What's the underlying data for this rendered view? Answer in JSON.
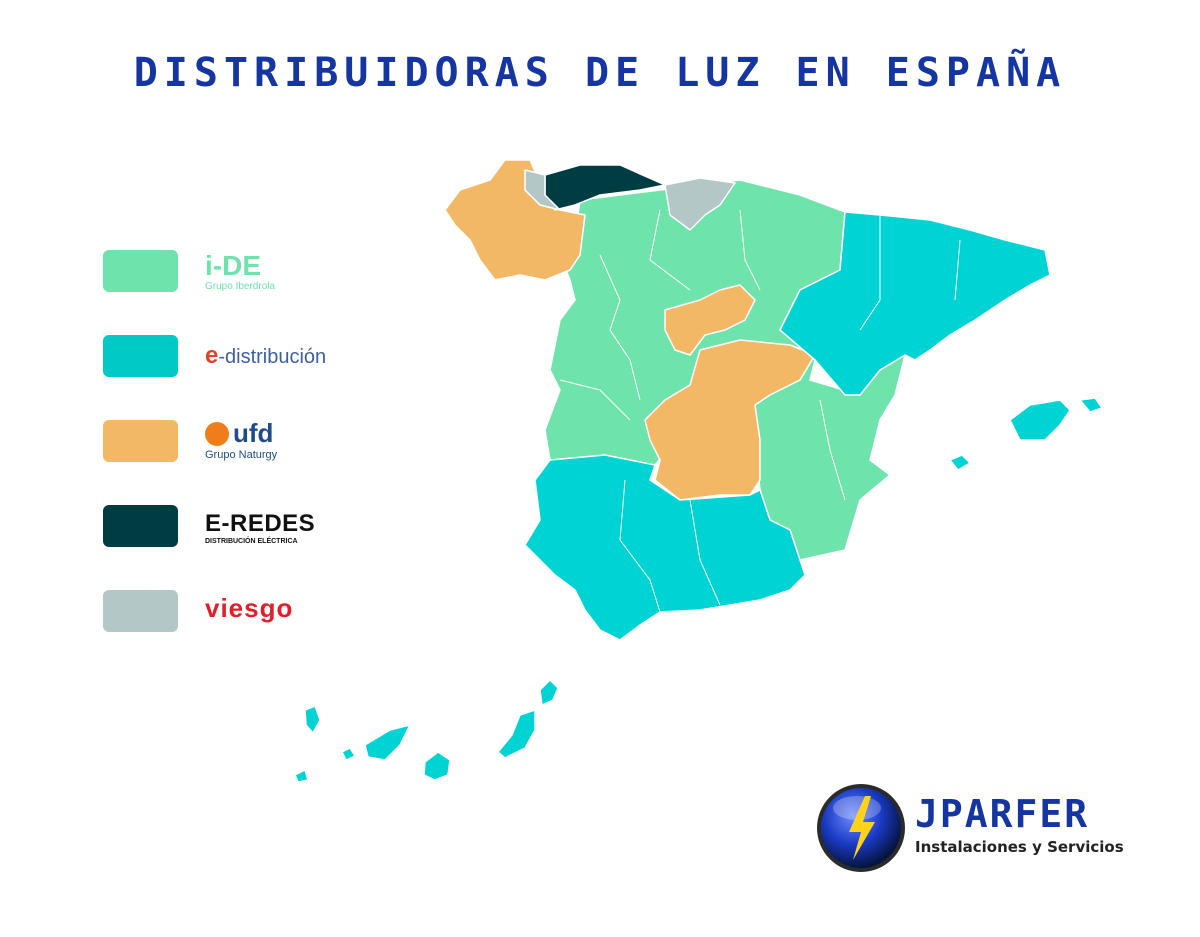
{
  "title": "DISTRIBUIDORAS DE LUZ EN ESPAÑA",
  "legend": [
    {
      "name": "i-DE",
      "logo_text": "i-DE",
      "subtext": "Grupo Iberdrola",
      "color": "#6fe3ac"
    },
    {
      "name": "e-distribución",
      "logo_text": "e-distribución",
      "color": "#00c9c6"
    },
    {
      "name": "ufd",
      "logo_text": "ufd",
      "subtext": "Grupo Naturgy",
      "color": "#f2b866"
    },
    {
      "name": "E-REDES",
      "logo_text": "E-REDES",
      "subtext": "DISTRIBUCIÓN ELÉCTRICA",
      "color": "#003d42"
    },
    {
      "name": "viesgo",
      "logo_text": "viesgo",
      "color": "#b2c7c6"
    }
  ],
  "map_colors": {
    "ide": "#6fe3ac",
    "edistribucion": "#00d3d3",
    "ufd": "#f2b866",
    "eredes": "#003d42",
    "viesgo": "#b2c7c6",
    "border": "#ffffff"
  },
  "brand": {
    "name": "JPARFER",
    "tagline": "Instalaciones y Servicios",
    "icon": "lightning-bolt-icon"
  }
}
